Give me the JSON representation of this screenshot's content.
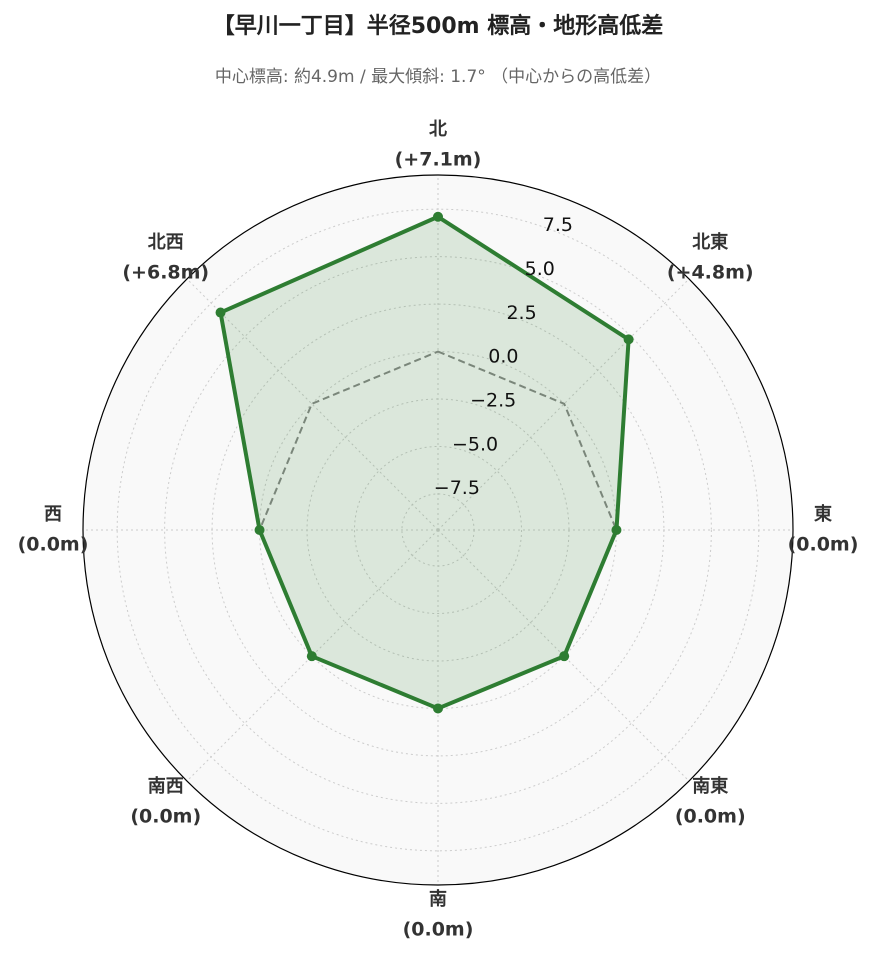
{
  "chart_data": {
    "type": "radar",
    "title": "【早川一丁目】半径500m 標高・地形高低差",
    "subtitle": "中心標高: 約4.9m / 最大傾斜: 1.7° （中心からの高低差）",
    "categories": [
      "北",
      "北東",
      "東",
      "南東",
      "南",
      "南西",
      "西",
      "北西"
    ],
    "series": [
      {
        "color": "#2e7d32",
        "values": [
          7.1,
          4.8,
          0.0,
          0.0,
          0.0,
          0.0,
          0.0,
          6.8
        ],
        "value_labels": [
          "(+7.1m)",
          "(+4.8m)",
          "(0.0m)",
          "(0.0m)",
          "(0.0m)",
          "(0.0m)",
          "(0.0m)",
          "(+6.8m)"
        ]
      }
    ],
    "reference_line": {
      "value": 0,
      "color": "#888888",
      "style": "dashed"
    },
    "ylim": [
      -9.4,
      9.3
    ],
    "yticks": [
      {
        "value": -7.5,
        "label": "−7.5"
      },
      {
        "value": -5,
        "label": "−5.0"
      },
      {
        "value": -2.5,
        "label": "−2.5"
      },
      {
        "value": 0,
        "label": "0.0"
      },
      2.5,
      {
        "value": 5,
        "label": "5.0"
      },
      7.5
    ],
    "grid": true
  }
}
